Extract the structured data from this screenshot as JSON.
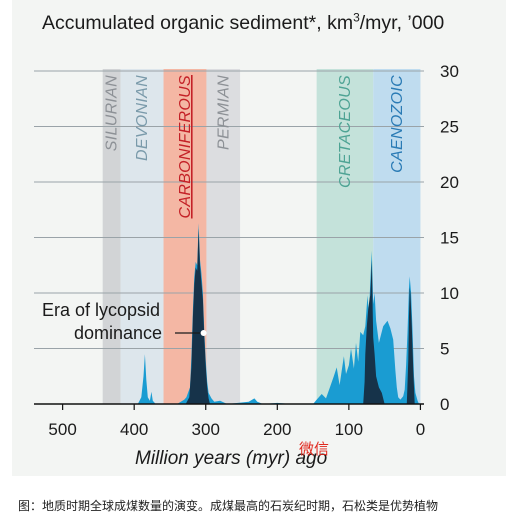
{
  "chart_data": {
    "type": "area",
    "title_text": "Accumulated organic sediment*, km",
    "title_sup": "3",
    "title_tail": "/myr, ’000",
    "xlabel": "Million years (myr) ago",
    "x_ticks": [
      "500",
      "400",
      "300",
      "200",
      "100",
      "0"
    ],
    "y_ticks": [
      "0",
      "5",
      "10",
      "15",
      "20",
      "25",
      "30"
    ],
    "xlim": [
      540,
      -5
    ],
    "ylim": [
      0,
      30
    ],
    "x_reversed": true,
    "grid": "horizontal",
    "periods": [
      {
        "label": "SILURIAN",
        "start": 444,
        "end": 419,
        "color": "#d2d4d6",
        "text_color": "#8d9196"
      },
      {
        "label": "DEVONIAN",
        "start": 419,
        "end": 359,
        "color": "#dde6ec",
        "text_color": "#7a9aaa"
      },
      {
        "label": "CARBONIFEROUS",
        "start": 359,
        "end": 299,
        "color": "#f4b7a4",
        "text_color": "#c42127"
      },
      {
        "label": "PERMIAN",
        "start": 299,
        "end": 252,
        "color": "#dcdde0",
        "text_color": "#8d9196"
      },
      {
        "label": "CRETACEOUS",
        "start": 145,
        "end": 66,
        "color": "#c4e2da",
        "text_color": "#4ea394"
      },
      {
        "label": "CAENOZOIC",
        "start": 66,
        "end": 0,
        "color": "#bfdcef",
        "text_color": "#2a7bb5"
      }
    ],
    "annotation": {
      "line1": "Era of lycopsid",
      "line2": "dominance",
      "x": 303,
      "y": 6.5
    },
    "series": [
      {
        "fill": "#1a9cd2",
        "points": [
          [
            420,
            0
          ],
          [
            395,
            0
          ],
          [
            390,
            0.6
          ],
          [
            387,
            2.5
          ],
          [
            385,
            4.5
          ],
          [
            383,
            2.2
          ],
          [
            381,
            0.6
          ],
          [
            378,
            0.3
          ],
          [
            376,
            1.1
          ],
          [
            374,
            0.3
          ],
          [
            370,
            0
          ],
          [
            340,
            0
          ],
          [
            330,
            0.4
          ],
          [
            327,
            0.6
          ],
          [
            322,
            1.5
          ],
          [
            320,
            4.3
          ],
          [
            318,
            8.5
          ],
          [
            316,
            11.5
          ],
          [
            314,
            12.8
          ],
          [
            312,
            12.5
          ],
          [
            310,
            16.3
          ],
          [
            308,
            13
          ],
          [
            306,
            11.8
          ],
          [
            304,
            10
          ],
          [
            302,
            6.5
          ],
          [
            300,
            4
          ],
          [
            298,
            2
          ],
          [
            296,
            1
          ],
          [
            292,
            0.5
          ],
          [
            288,
            0.2
          ],
          [
            280,
            0.3
          ],
          [
            270,
            0
          ],
          [
            240,
            0.2
          ],
          [
            232,
            0.5
          ],
          [
            228,
            0.2
          ],
          [
            220,
            0
          ],
          [
            200,
            0.1
          ],
          [
            180,
            0
          ],
          [
            150,
            0
          ],
          [
            145,
            0.4
          ],
          [
            138,
            0.9
          ],
          [
            132,
            0.5
          ],
          [
            126,
            1.6
          ],
          [
            121,
            2.5
          ],
          [
            117,
            3.3
          ],
          [
            113,
            1.7
          ],
          [
            110,
            3
          ],
          [
            107,
            4.3
          ],
          [
            104,
            2.7
          ],
          [
            100,
            3.5
          ],
          [
            97,
            5
          ],
          [
            93,
            3.2
          ],
          [
            90,
            5.5
          ],
          [
            87,
            3.8
          ],
          [
            84,
            6.5
          ],
          [
            80,
            6.2
          ],
          [
            77,
            7
          ],
          [
            74,
            9.8
          ],
          [
            72,
            8
          ],
          [
            70,
            11
          ],
          [
            68,
            13.8
          ],
          [
            66,
            9
          ],
          [
            64,
            10
          ],
          [
            62,
            7.5
          ],
          [
            58,
            5.5
          ],
          [
            52,
            7
          ],
          [
            46,
            7.5
          ],
          [
            42,
            6.8
          ],
          [
            38,
            5.8
          ],
          [
            35,
            3
          ],
          [
            33,
            1.5
          ],
          [
            31,
            0.6
          ],
          [
            28,
            0.4
          ],
          [
            24,
            0.7
          ],
          [
            22,
            1.3
          ],
          [
            20,
            3.5
          ],
          [
            18,
            6.5
          ],
          [
            16,
            10.5
          ],
          [
            15,
            11.5
          ],
          [
            13,
            10
          ],
          [
            11,
            6.5
          ],
          [
            9,
            2.5
          ],
          [
            7,
            1
          ],
          [
            4,
            0.3
          ],
          [
            2,
            0
          ]
        ]
      },
      {
        "fill": "#16334a",
        "points": [
          [
            328,
            0
          ],
          [
            323,
            0.6
          ],
          [
            320,
            3.3
          ],
          [
            318,
            7.8
          ],
          [
            316,
            10.8
          ],
          [
            314,
            12.3
          ],
          [
            312,
            12
          ],
          [
            310,
            15.8
          ],
          [
            308,
            12.5
          ],
          [
            306,
            11
          ],
          [
            304,
            9.4
          ],
          [
            302,
            6
          ],
          [
            300,
            3.5
          ],
          [
            298,
            1.5
          ],
          [
            296,
            0.5
          ],
          [
            294,
            0
          ],
          [
            80,
            0
          ],
          [
            78,
            2
          ],
          [
            77,
            4.5
          ],
          [
            75,
            7
          ],
          [
            73,
            8.5
          ],
          [
            71,
            9.5
          ],
          [
            70,
            9.8
          ],
          [
            68,
            13
          ],
          [
            66,
            6
          ],
          [
            64,
            4.5
          ],
          [
            62,
            2.5
          ],
          [
            58,
            1.5
          ],
          [
            54,
            1
          ],
          [
            50,
            0
          ],
          [
            19,
            0
          ],
          [
            17,
            4
          ],
          [
            16,
            8
          ],
          [
            15,
            10.5
          ],
          [
            14,
            10
          ],
          [
            12,
            7
          ],
          [
            10,
            3
          ],
          [
            8,
            0
          ]
        ]
      }
    ]
  },
  "watermark": "微信",
  "caption": "图：地质时期全球成煤数量的演变。成煤最高的石炭纪时期，石松类是优势植物"
}
